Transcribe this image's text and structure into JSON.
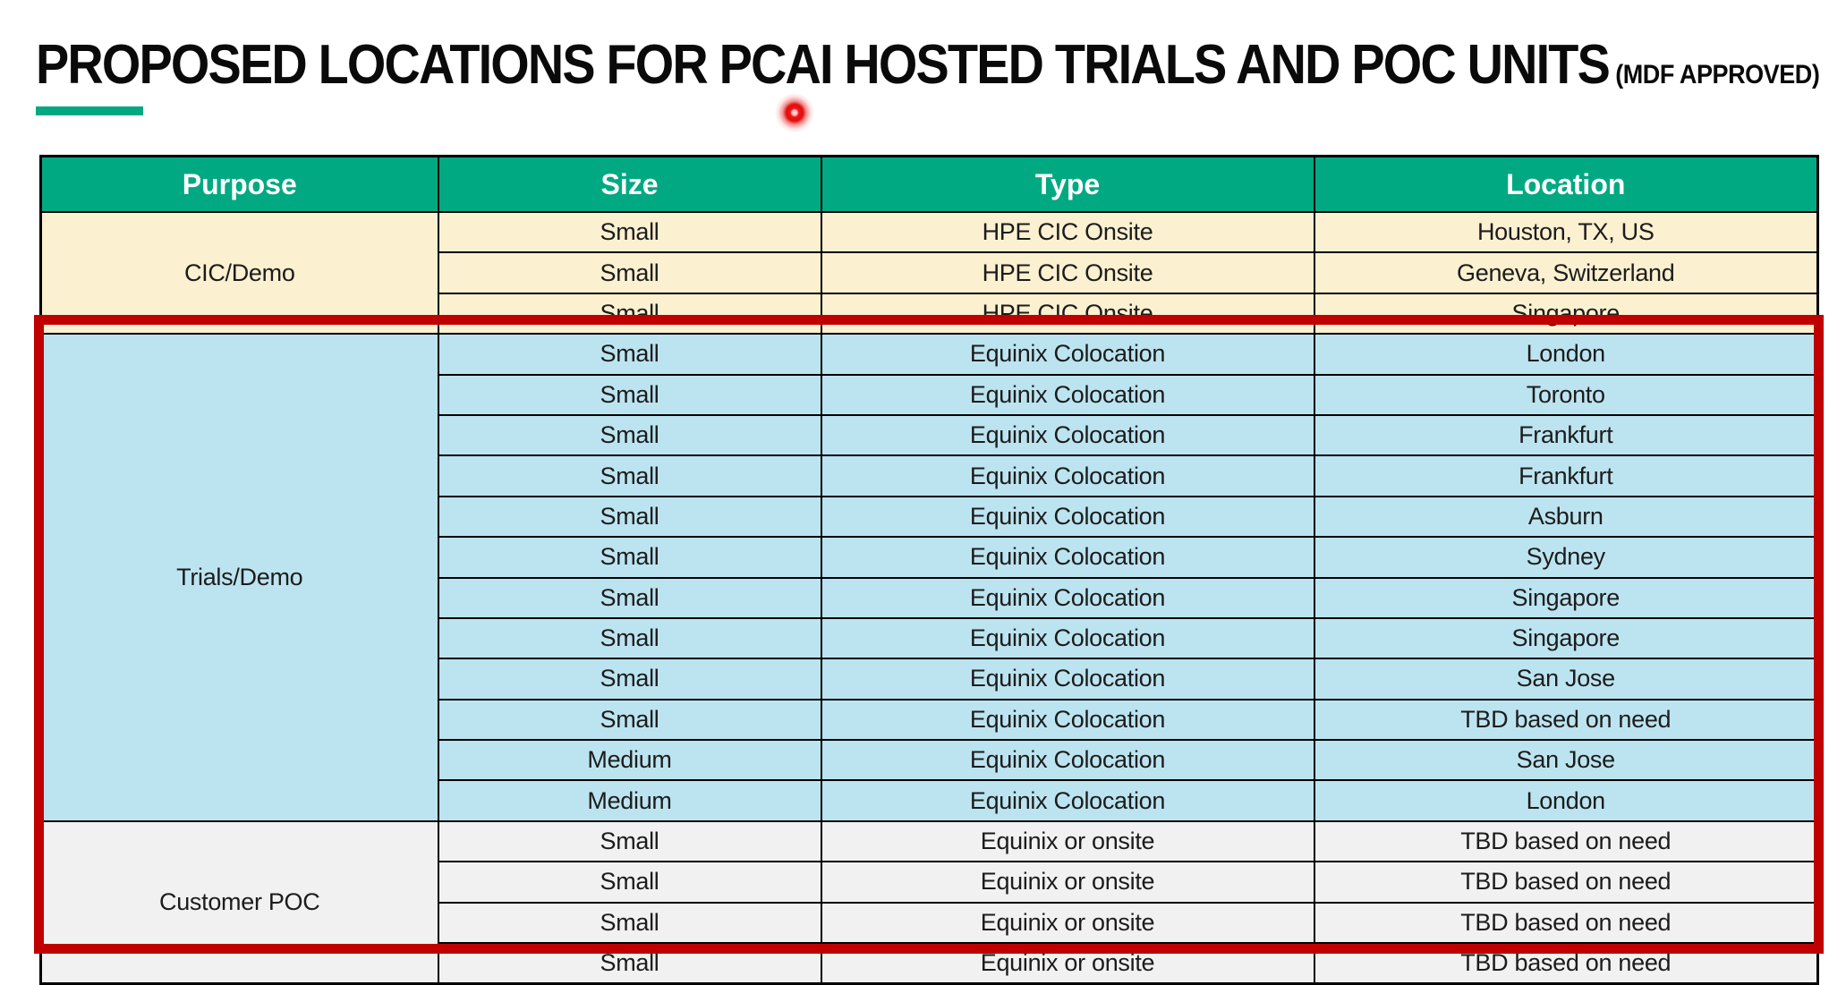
{
  "page": {
    "title": "PROPOSED LOCATIONS FOR PCAI HOSTED TRIALS AND POC UNITS",
    "title_suffix": "(MDF APPROVED)"
  },
  "colors": {
    "accent_green": "#01A982",
    "header_bg": "#01A982",
    "header_text": "#FFFFFF",
    "cic_section_bg": "#FBF0D0",
    "trials_section_bg": "#BCE4F0",
    "poc_section_bg": "#F1F1F1",
    "highlight_border": "#C00000",
    "laser_pointer_red": "#E81123",
    "grid_border": "#000000",
    "body_text": "#1C1C1C"
  },
  "table": {
    "columns": [
      "Purpose",
      "Size",
      "Type",
      "Location"
    ],
    "sections": [
      {
        "purpose": "CIC/Demo",
        "bg": "#FBF0D0",
        "highlighted": false,
        "rows": [
          {
            "size": "Small",
            "type": "HPE CIC Onsite",
            "location": "Houston, TX, US"
          },
          {
            "size": "Small",
            "type": "HPE CIC Onsite",
            "location": "Geneva, Switzerland"
          },
          {
            "size": "Small",
            "type": "HPE CIC Onsite",
            "location": "Singapore"
          }
        ]
      },
      {
        "purpose": "Trials/Demo",
        "bg": "#BCE4F0",
        "highlighted": true,
        "rows": [
          {
            "size": "Small",
            "type": "Equinix Colocation",
            "location": "London"
          },
          {
            "size": "Small",
            "type": "Equinix Colocation",
            "location": "Toronto"
          },
          {
            "size": "Small",
            "type": "Equinix Colocation",
            "location": "Frankfurt"
          },
          {
            "size": "Small",
            "type": "Equinix Colocation",
            "location": "Frankfurt"
          },
          {
            "size": "Small",
            "type": "Equinix Colocation",
            "location": "Asburn"
          },
          {
            "size": "Small",
            "type": "Equinix Colocation",
            "location": "Sydney"
          },
          {
            "size": "Small",
            "type": "Equinix Colocation",
            "location": "Singapore"
          },
          {
            "size": "Small",
            "type": "Equinix Colocation",
            "location": "Singapore"
          },
          {
            "size": "Small",
            "type": "Equinix Colocation",
            "location": "San Jose"
          },
          {
            "size": "Small",
            "type": "Equinix Colocation",
            "location": "TBD based on need"
          },
          {
            "size": "Medium",
            "type": "Equinix Colocation",
            "location": "San Jose"
          },
          {
            "size": "Medium",
            "type": "Equinix Colocation",
            "location": "London"
          }
        ]
      },
      {
        "purpose": "Customer POC",
        "bg": "#F1F1F1",
        "highlighted": true,
        "rows": [
          {
            "size": "Small",
            "type": "Equinix or onsite",
            "location": "TBD based on need"
          },
          {
            "size": "Small",
            "type": "Equinix or onsite",
            "location": "TBD based on need"
          },
          {
            "size": "Small",
            "type": "Equinix or onsite",
            "location": "TBD based on need"
          },
          {
            "size": "Small",
            "type": "Equinix or onsite",
            "location": "TBD based on need"
          }
        ]
      }
    ]
  }
}
